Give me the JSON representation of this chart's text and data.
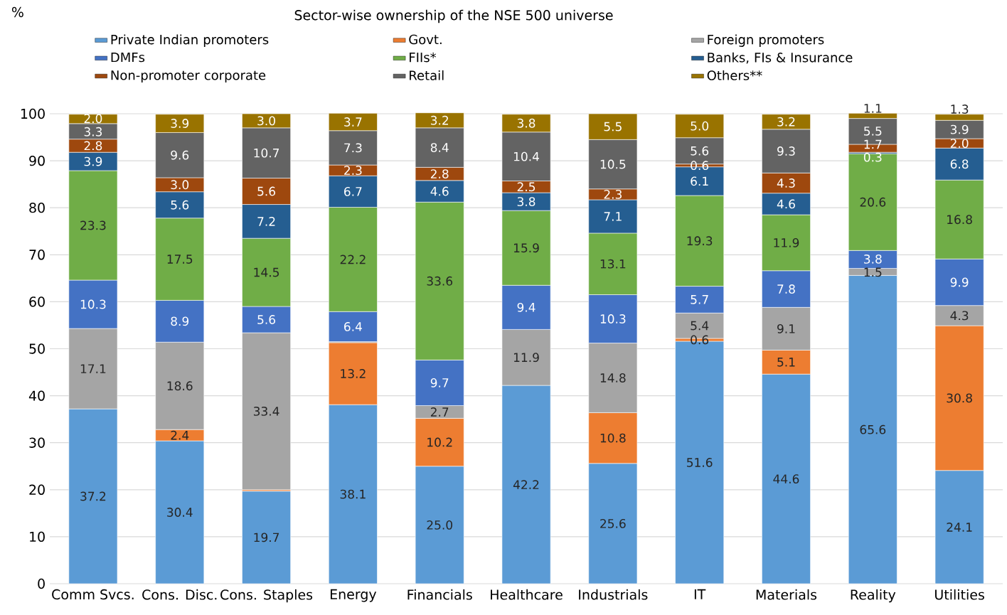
{
  "chart_data": {
    "type": "bar",
    "stacked": true,
    "title": "Sector-wise ownership of the NSE 500 universe",
    "annotations": [
      "%"
    ],
    "categories": [
      "Comm Svcs.",
      "Cons. Disc.",
      "Cons. Staples",
      "Energy",
      "Financials",
      "Healthcare",
      "Industrials",
      "IT",
      "Materials",
      "Reality",
      "Utilities"
    ],
    "ylim": [
      0,
      100
    ],
    "yticks": [
      0,
      10,
      20,
      30,
      40,
      50,
      60,
      70,
      80,
      90,
      100
    ],
    "grid": "y",
    "legend": "top",
    "series": [
      {
        "name": "Private Indian promoters",
        "color": "#5b9bd5",
        "values": [
          37.2,
          30.4,
          19.7,
          38.1,
          25.0,
          42.2,
          25.6,
          51.6,
          44.6,
          65.6,
          24.1
        ],
        "value_labels": [
          "37.2",
          "30.4",
          "19.7",
          "38.1",
          "25.0",
          "42.2",
          "25.6",
          "51.6",
          "44.6",
          "65.6",
          "24.1"
        ]
      },
      {
        "name": "Govt.",
        "color": "#ed7d31",
        "values": [
          null,
          2.4,
          0.3,
          13.2,
          10.2,
          null,
          10.8,
          0.6,
          5.1,
          null,
          30.8
        ],
        "value_labels": [
          null,
          "2.4",
          null,
          "13.2",
          "10.2",
          null,
          "10.8",
          "0.6",
          "5.1",
          null,
          "30.8"
        ]
      },
      {
        "name": "Foreign promoters",
        "color": "#a5a5a5",
        "values": [
          17.1,
          18.6,
          33.4,
          0.2,
          2.7,
          11.9,
          14.8,
          5.4,
          9.1,
          1.5,
          4.3
        ],
        "value_labels": [
          "17.1",
          "18.6",
          "33.4",
          null,
          "2.7",
          "11.9",
          "14.8",
          "5.4",
          "9.1",
          "1.5",
          "4.3"
        ]
      },
      {
        "name": "DMFs",
        "color": "#4472c4",
        "values": [
          10.3,
          8.9,
          5.6,
          6.4,
          9.7,
          9.4,
          10.3,
          5.7,
          7.8,
          3.8,
          9.9
        ],
        "value_labels": [
          "10.3",
          "8.9",
          "5.6",
          "6.4",
          "9.7",
          "9.4",
          "10.3",
          "5.7",
          "7.8",
          "3.8",
          "9.9"
        ]
      },
      {
        "name": "FIIs*",
        "color": "#70ad47",
        "values": [
          23.3,
          17.5,
          14.5,
          22.2,
          33.6,
          15.9,
          13.1,
          19.3,
          11.9,
          20.6,
          16.8
        ],
        "value_labels": [
          "23.3",
          "17.5",
          "14.5",
          "22.2",
          "33.6",
          "15.9",
          "13.1",
          "19.3",
          "11.9",
          "20.6",
          "16.8"
        ]
      },
      {
        "name": "Banks, FIs & Insurance",
        "color": "#255e91",
        "values": [
          3.9,
          5.6,
          7.2,
          6.7,
          4.6,
          3.8,
          7.1,
          6.1,
          4.6,
          0.3,
          6.8
        ],
        "value_labels": [
          "3.9",
          "5.6",
          "7.2",
          "6.7",
          "4.6",
          "3.8",
          "7.1",
          "6.1",
          "4.6",
          "0.3",
          "6.8"
        ]
      },
      {
        "name": "Non-promoter corporate",
        "color": "#9e480e",
        "values": [
          2.8,
          3.0,
          5.6,
          2.3,
          2.8,
          2.5,
          2.3,
          0.6,
          4.3,
          1.7,
          2.0
        ],
        "value_labels": [
          "2.8",
          "3.0",
          "5.6",
          "2.3",
          "2.8",
          "2.5",
          "2.3",
          "0.6",
          "4.3",
          "1.7",
          "2.0"
        ]
      },
      {
        "name": "Retail",
        "color": "#636363",
        "values": [
          3.3,
          9.6,
          10.7,
          7.3,
          8.4,
          10.4,
          10.5,
          5.6,
          9.3,
          5.5,
          3.9
        ],
        "value_labels": [
          "3.3",
          "9.6",
          "10.7",
          "7.3",
          "8.4",
          "10.4",
          "10.5",
          "5.6",
          "9.3",
          "5.5",
          "3.9"
        ]
      },
      {
        "name": "Others**",
        "color": "#997300",
        "values": [
          2.0,
          3.9,
          3.0,
          3.7,
          3.2,
          3.8,
          5.5,
          5.0,
          3.2,
          1.1,
          1.3
        ],
        "value_labels": [
          "2.0",
          "3.9",
          "3.0",
          "3.7",
          "3.2",
          "3.8",
          "5.5",
          "5.0",
          "3.2",
          "1.1",
          "1.3"
        ]
      }
    ]
  }
}
